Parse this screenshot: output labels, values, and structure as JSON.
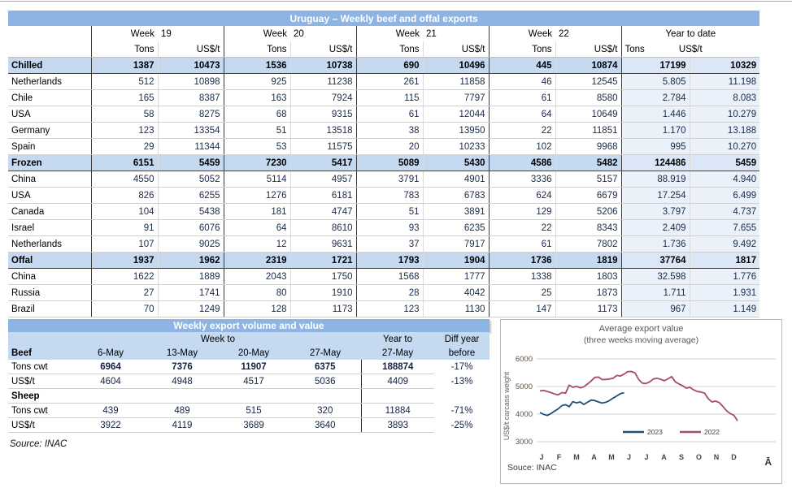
{
  "main_table": {
    "title": "Uruguay – Weekly beef and offal exports",
    "week_groups": [
      {
        "label": "Week",
        "num": "19"
      },
      {
        "label": "Week",
        "num": "20"
      },
      {
        "label": "Week",
        "num": "21"
      },
      {
        "label": "Week",
        "num": "22"
      }
    ],
    "ytd_label": "Year to date",
    "col_headers": {
      "tons": "Tons",
      "usd": "US$/t"
    },
    "rows": [
      {
        "label": "Chilled",
        "type": "section",
        "values": [
          "1387",
          "10473",
          "1536",
          "10738",
          "690",
          "10496",
          "445",
          "10874",
          "17199",
          "10329"
        ]
      },
      {
        "label": "Netherlands",
        "type": "data",
        "values": [
          "512",
          "10898",
          "925",
          "11238",
          "261",
          "11858",
          "46",
          "12545",
          "5.805",
          "11.198"
        ]
      },
      {
        "label": "Chile",
        "type": "data",
        "values": [
          "165",
          "8387",
          "163",
          "7924",
          "115",
          "7797",
          "61",
          "8580",
          "2.784",
          "8.083"
        ]
      },
      {
        "label": "USA",
        "type": "data",
        "values": [
          "58",
          "8275",
          "68",
          "9315",
          "61",
          "12044",
          "64",
          "10649",
          "1.446",
          "10.279"
        ]
      },
      {
        "label": "Germany",
        "type": "data",
        "values": [
          "123",
          "13354",
          "51",
          "13518",
          "38",
          "13950",
          "22",
          "11851",
          "1.170",
          "13.188"
        ]
      },
      {
        "label": "Spain",
        "type": "data",
        "values": [
          "29",
          "11344",
          "53",
          "11575",
          "20",
          "10233",
          "102",
          "9968",
          "995",
          "10.270"
        ]
      },
      {
        "label": "Frozen",
        "type": "section",
        "values": [
          "6151",
          "5459",
          "7230",
          "5417",
          "5089",
          "5430",
          "4586",
          "5482",
          "124486",
          "5459"
        ]
      },
      {
        "label": "China",
        "type": "data",
        "values": [
          "4550",
          "5052",
          "5114",
          "4957",
          "3791",
          "4901",
          "3336",
          "5157",
          "88.919",
          "4.940"
        ]
      },
      {
        "label": "USA",
        "type": "data",
        "values": [
          "826",
          "6255",
          "1276",
          "6181",
          "783",
          "6783",
          "624",
          "6679",
          "17.254",
          "6.499"
        ]
      },
      {
        "label": "Canada",
        "type": "data",
        "values": [
          "104",
          "5438",
          "181",
          "4747",
          "51",
          "3891",
          "129",
          "5206",
          "3.797",
          "4.737"
        ]
      },
      {
        "label": "Israel",
        "type": "data",
        "values": [
          "91",
          "6076",
          "64",
          "8610",
          "93",
          "6235",
          "22",
          "8343",
          "2.409",
          "7.655"
        ]
      },
      {
        "label": "Netherlands",
        "type": "data",
        "values": [
          "107",
          "9025",
          "12",
          "9631",
          "37",
          "7917",
          "61",
          "7802",
          "1.736",
          "9.492"
        ]
      },
      {
        "label": "Offal",
        "type": "section",
        "values": [
          "1937",
          "1962",
          "2319",
          "1721",
          "1793",
          "1904",
          "1736",
          "1819",
          "37764",
          "1817"
        ]
      },
      {
        "label": "China",
        "type": "data",
        "values": [
          "1622",
          "1889",
          "2043",
          "1750",
          "1568",
          "1777",
          "1338",
          "1803",
          "32.598",
          "1.776"
        ]
      },
      {
        "label": "Russia",
        "type": "data",
        "values": [
          "27",
          "1741",
          "80",
          "1910",
          "28",
          "4042",
          "25",
          "1873",
          "1.711",
          "1.931"
        ]
      },
      {
        "label": "Brazil",
        "type": "data",
        "values": [
          "70",
          "1249",
          "128",
          "1173",
          "123",
          "1130",
          "147",
          "1173",
          "967",
          "1.149"
        ]
      }
    ]
  },
  "weekly_table": {
    "title": "Weekly export volume and value",
    "week_to_label": "Week to",
    "year_to_label": "Year to",
    "diff_label": "Diff year",
    "before_label": "before",
    "beef_label": "Beef",
    "dates": [
      "6-May",
      "13-May",
      "20-May",
      "27-May"
    ],
    "ytd_date": "27-May",
    "rows": [
      {
        "label": "Tons cwt",
        "bold": true,
        "section": false,
        "values": [
          "6964",
          "7376",
          "11907",
          "6375",
          "188874",
          "-17%"
        ]
      },
      {
        "label": "US$/t",
        "bold": false,
        "section": false,
        "values": [
          "4604",
          "4948",
          "4517",
          "5036",
          "4409",
          "-13%"
        ]
      },
      {
        "label": "Sheep",
        "bold": false,
        "section": true,
        "values": [
          "",
          "",
          "",
          "",
          "",
          ""
        ]
      },
      {
        "label": "Tons cwt",
        "bold": false,
        "section": false,
        "values": [
          "439",
          "489",
          "515",
          "320",
          "11884",
          "-71%"
        ]
      },
      {
        "label": "US$/t",
        "bold": false,
        "section": false,
        "values": [
          "3922",
          "4119",
          "3689",
          "3640",
          "3893",
          "-25%"
        ]
      }
    ],
    "source": "Source: INAC"
  },
  "chart_data": {
    "type": "line",
    "title": "Average export  value",
    "subtitle": "(three weeks moving average)",
    "ylabel": "US$/t carcass weight",
    "ylim": [
      3000,
      6000
    ],
    "yticks": [
      3000,
      4000,
      5000,
      6000
    ],
    "x_tick_labels": [
      "J",
      "F",
      "M",
      "A",
      "M",
      "J",
      "J",
      "A",
      "S",
      "O",
      "N",
      "D"
    ],
    "grid": "horizontal",
    "legend_position": "inside-bottom",
    "series": [
      {
        "name": "2023",
        "color": "#1F4E79",
        "values": [
          4060,
          3990,
          3950,
          4020,
          4110,
          4190,
          4310,
          4340,
          4270,
          4450,
          4410,
          4440,
          4350,
          4430,
          4510,
          4490,
          4440,
          4400,
          4430,
          4490,
          4580,
          4660,
          4740,
          4770
        ]
      },
      {
        "name": "2022",
        "color": "#A64A6E",
        "values": [
          4840,
          4855,
          4820,
          4780,
          4730,
          4700,
          4780,
          4760,
          5050,
          4970,
          5010,
          4950,
          4990,
          5090,
          5200,
          5330,
          5340,
          5250,
          5255,
          5270,
          5300,
          5400,
          5380,
          5450,
          5540,
          5545,
          5490,
          5250,
          5120,
          5110,
          5170,
          5270,
          5300,
          5260,
          5210,
          5280,
          5360,
          5170,
          5090,
          5030,
          4940,
          4970,
          4880,
          4820,
          4800,
          4760,
          4560,
          4440,
          4470,
          4420,
          4280,
          4120,
          4020,
          3960,
          3760
        ]
      }
    ],
    "source": "Souce: INAC",
    "corner_glyph": "Ā"
  }
}
